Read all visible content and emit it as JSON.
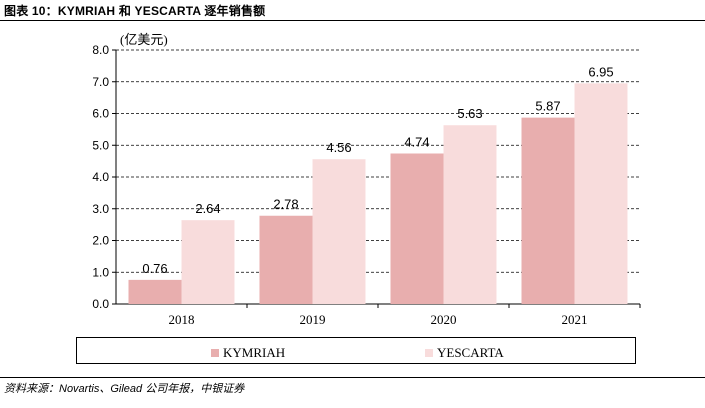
{
  "figure": {
    "title": "图表 10：KYMRIAH 和 YESCARTA 逐年销售额",
    "source": "资料来源：Novartis、Gilead 公司年报，中银证券"
  },
  "chart_data": {
    "type": "bar",
    "title": "",
    "unit_label": "(亿美元)",
    "xlabel": "",
    "ylabel": "",
    "categories": [
      "2018",
      "2019",
      "2020",
      "2021"
    ],
    "series": [
      {
        "name": "KYMRIAH",
        "values": [
          0.76,
          2.78,
          4.74,
          5.87
        ],
        "value_labels": [
          "0.76",
          "2.78",
          "4.74",
          "5.87"
        ],
        "color": "#e8aeae"
      },
      {
        "name": "YESCARTA",
        "values": [
          2.64,
          4.56,
          5.63,
          6.95
        ],
        "value_labels": [
          "2.64",
          "4.56",
          "5.63",
          "6.95"
        ],
        "color": "#f8dcdc"
      }
    ],
    "ylim": [
      0,
      8
    ],
    "yticks": [
      0,
      1,
      2,
      3,
      4,
      5,
      6,
      7,
      8
    ],
    "ytick_labels": [
      "0.0",
      "1.0",
      "2.0",
      "3.0",
      "4.0",
      "5.0",
      "6.0",
      "7.0",
      "8.0"
    ],
    "grid": true,
    "grid_style": "dashed",
    "legend_position": "bottom"
  }
}
